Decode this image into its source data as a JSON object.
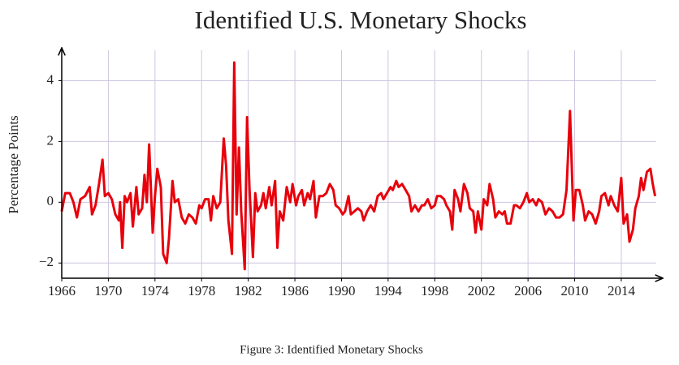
{
  "chart_data": {
    "type": "line",
    "title": "Identified U.S. Monetary Shocks",
    "ylabel": "Percentage Points",
    "caption": "Figure 3: Identified Monetary Shocks",
    "color": "#e8000b",
    "grid": true,
    "xlim": [
      1966,
      2017
    ],
    "ylim": [
      -2.5,
      5
    ],
    "xticks": [
      1966,
      1970,
      1974,
      1978,
      1982,
      1986,
      1990,
      1994,
      1998,
      2002,
      2006,
      2010,
      2014
    ],
    "yticks": [
      {
        "value": -2,
        "label": "−2"
      },
      0,
      2,
      4
    ],
    "x": [
      1966.0,
      1966.3,
      1966.7,
      1967.0,
      1967.3,
      1967.6,
      1968.0,
      1968.4,
      1968.6,
      1968.9,
      1969.2,
      1969.5,
      1969.7,
      1970.0,
      1970.3,
      1970.6,
      1970.9,
      1971.0,
      1971.2,
      1971.4,
      1971.6,
      1971.9,
      1972.1,
      1972.4,
      1972.6,
      1972.9,
      1973.1,
      1973.3,
      1973.5,
      1973.8,
      1974.0,
      1974.2,
      1974.5,
      1974.7,
      1975.0,
      1975.2,
      1975.5,
      1975.7,
      1976.0,
      1976.3,
      1976.6,
      1976.9,
      1977.2,
      1977.5,
      1977.8,
      1978.0,
      1978.3,
      1978.6,
      1978.8,
      1979.0,
      1979.3,
      1979.6,
      1979.9,
      1980.1,
      1980.3,
      1980.6,
      1980.8,
      1981.0,
      1981.2,
      1981.4,
      1981.7,
      1981.9,
      1982.1,
      1982.4,
      1982.6,
      1982.8,
      1983.1,
      1983.3,
      1983.5,
      1983.8,
      1984.0,
      1984.3,
      1984.5,
      1984.7,
      1985.0,
      1985.3,
      1985.6,
      1985.8,
      1986.1,
      1986.3,
      1986.6,
      1986.8,
      1987.1,
      1987.3,
      1987.6,
      1987.8,
      1988.1,
      1988.4,
      1988.7,
      1989.0,
      1989.3,
      1989.5,
      1989.8,
      1990.1,
      1990.3,
      1990.6,
      1990.8,
      1991.1,
      1991.4,
      1991.7,
      1991.9,
      1992.2,
      1992.5,
      1992.8,
      1993.1,
      1993.4,
      1993.6,
      1993.9,
      1994.2,
      1994.4,
      1994.7,
      1994.9,
      1995.2,
      1995.5,
      1995.8,
      1996.0,
      1996.3,
      1996.6,
      1996.9,
      1997.1,
      1997.4,
      1997.7,
      1998.0,
      1998.2,
      1998.5,
      1998.8,
      1999.0,
      1999.3,
      1999.5,
      1999.7,
      2000.0,
      2000.2,
      2000.5,
      2000.8,
      2001.0,
      2001.3,
      2001.5,
      2001.7,
      2002.0,
      2002.2,
      2002.5,
      2002.7,
      2003.0,
      2003.2,
      2003.5,
      2003.8,
      2004.0,
      2004.2,
      2004.5,
      2004.8,
      2005.0,
      2005.3,
      2005.6,
      2005.9,
      2006.1,
      2006.4,
      2006.7,
      2006.9,
      2007.2,
      2007.5,
      2007.8,
      2008.1,
      2008.4,
      2008.7,
      2009.0,
      2009.3,
      2009.6,
      2009.9,
      2010.1,
      2010.4,
      2010.7,
      2010.9,
      2011.2,
      2011.5,
      2011.8,
      2012.1,
      2012.3,
      2012.6,
      2012.9,
      2013.1,
      2013.4,
      2013.7,
      2014.0,
      2014.2,
      2014.5,
      2014.7,
      2015.0,
      2015.2,
      2015.5,
      2015.7,
      2015.9,
      2016.2,
      2016.5,
      2016.7,
      2016.9
    ],
    "values": [
      -0.3,
      0.3,
      0.3,
      0.0,
      -0.5,
      0.1,
      0.2,
      0.5,
      -0.4,
      -0.1,
      0.6,
      1.4,
      0.2,
      0.3,
      0.1,
      -0.4,
      -0.6,
      0.0,
      -1.5,
      0.2,
      0.0,
      0.3,
      -0.8,
      0.5,
      -0.4,
      -0.2,
      0.9,
      0.0,
      1.9,
      -1.0,
      0.2,
      1.1,
      0.5,
      -1.7,
      -2.0,
      -1.2,
      0.7,
      0.0,
      0.1,
      -0.5,
      -0.7,
      -0.4,
      -0.5,
      -0.7,
      -0.1,
      -0.2,
      0.1,
      0.1,
      -0.6,
      0.2,
      -0.2,
      0.0,
      2.1,
      1.2,
      -0.6,
      -1.7,
      4.6,
      -0.4,
      1.8,
      -0.3,
      -2.2,
      2.8,
      0.5,
      -1.8,
      0.3,
      -0.3,
      -0.1,
      0.3,
      -0.2,
      0.5,
      -0.1,
      0.7,
      -1.5,
      -0.3,
      -0.6,
      0.5,
      0.0,
      0.6,
      -0.1,
      0.2,
      0.4,
      -0.1,
      0.3,
      0.1,
      0.7,
      -0.5,
      0.2,
      0.2,
      0.3,
      0.6,
      0.4,
      -0.1,
      -0.2,
      -0.4,
      -0.3,
      0.2,
      -0.4,
      -0.3,
      -0.2,
      -0.3,
      -0.6,
      -0.3,
      -0.1,
      -0.3,
      0.2,
      0.3,
      0.1,
      0.3,
      0.5,
      0.4,
      0.7,
      0.5,
      0.6,
      0.4,
      0.2,
      -0.3,
      -0.1,
      -0.3,
      -0.1,
      -0.1,
      0.1,
      -0.2,
      -0.1,
      0.2,
      0.2,
      0.1,
      -0.1,
      -0.3,
      -0.9,
      0.4,
      0.1,
      -0.3,
      0.6,
      0.3,
      -0.2,
      -0.3,
      -1.0,
      -0.3,
      -0.9,
      0.1,
      -0.1,
      0.6,
      0.1,
      -0.5,
      -0.3,
      -0.4,
      -0.3,
      -0.7,
      -0.7,
      -0.1,
      -0.1,
      -0.2,
      0.0,
      0.3,
      0.0,
      0.1,
      -0.1,
      0.1,
      0.0,
      -0.4,
      -0.2,
      -0.3,
      -0.5,
      -0.5,
      -0.4,
      0.4,
      3.0,
      -0.6,
      0.4,
      0.4,
      -0.1,
      -0.6,
      -0.3,
      -0.4,
      -0.7,
      -0.3,
      0.2,
      0.3,
      -0.1,
      0.2,
      -0.1,
      -0.3,
      0.8,
      -0.7,
      -0.4,
      -1.3,
      -0.9,
      -0.2,
      0.2,
      0.8,
      0.4,
      1.0,
      1.1,
      0.6,
      0.2
    ]
  }
}
